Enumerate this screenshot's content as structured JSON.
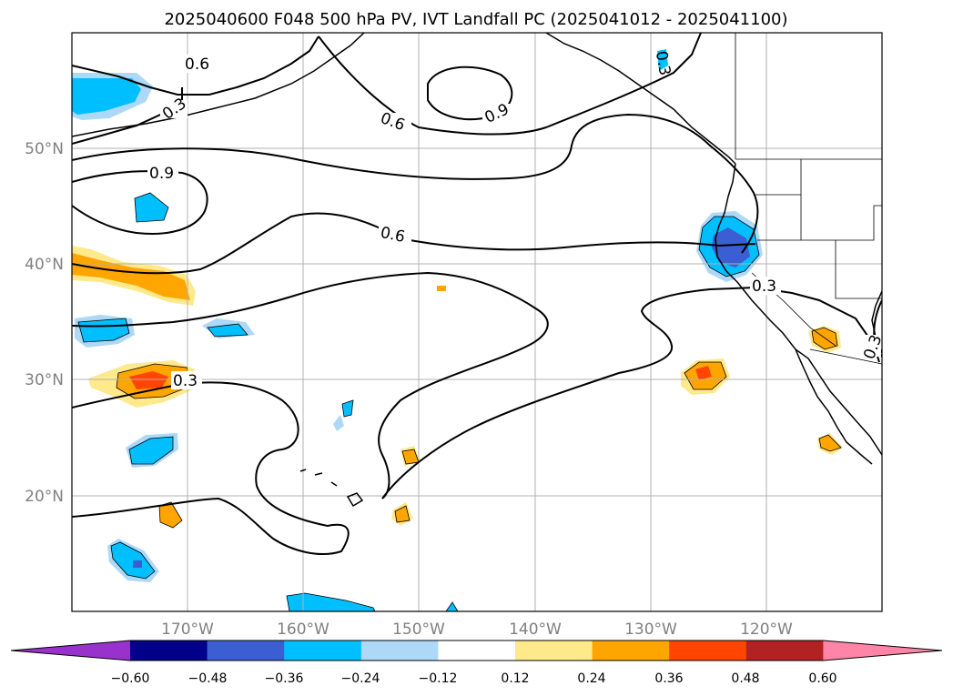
{
  "title": "2025040600 F048 500 hPa PV, IVT Landfall PC (2025041012 - 2025041100)",
  "lat_labels": [
    "50°N",
    "40°N",
    "30°N",
    "20°N"
  ],
  "lon_labels": [
    "170°W",
    "160°W",
    "150°W",
    "140°W",
    "130°W",
    "120°W"
  ],
  "map_extent": {
    "lon": [
      -180,
      -110
    ],
    "lat": [
      10,
      60
    ]
  },
  "contour_labels": [
    "0.6",
    "0.3",
    "0.6",
    "0.9",
    "0.9",
    "0.6",
    "0.3",
    "0.3",
    "0.3",
    "0.3"
  ],
  "colorbar": {
    "ticks": [
      "−0.60",
      "−0.48",
      "−0.36",
      "−0.24",
      "−0.12",
      "0.12",
      "0.24",
      "0.36",
      "0.48",
      "0.60"
    ],
    "colors": [
      "#9932cc",
      "#00008b",
      "#3b5fd2",
      "#00bfff",
      "#add8f7",
      "#ffffff",
      "#fee98b",
      "#ffa500",
      "#ff4500",
      "#b22222",
      "#ff85a8"
    ]
  }
}
